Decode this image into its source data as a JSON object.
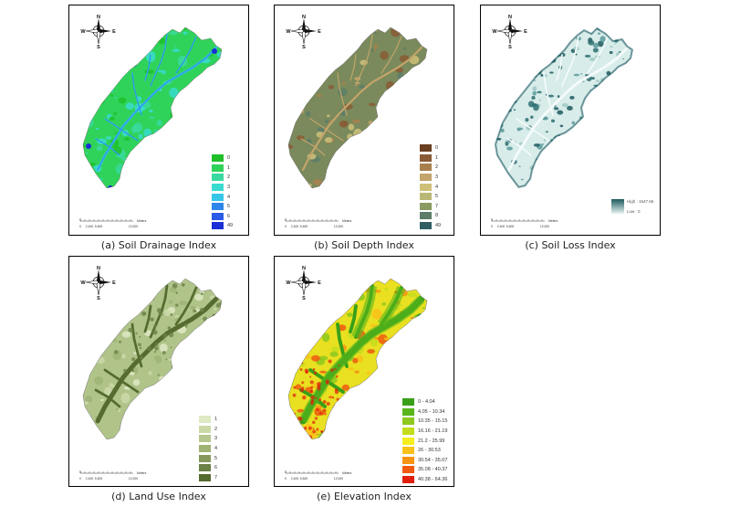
{
  "compass": {
    "n": "N",
    "s": "S",
    "e": "E",
    "w": "W"
  },
  "scalebar": {
    "ticks": [
      "0",
      "2,400",
      "5,600",
      "12,000"
    ],
    "unit": "Meters"
  },
  "panels": [
    {
      "caption": "(a) Soil Drainage Index",
      "map_style": "drainage",
      "legend": [
        {
          "label": "0",
          "color": "#1fbf2a"
        },
        {
          "label": "1",
          "color": "#2fd35a"
        },
        {
          "label": "2",
          "color": "#39d9a0"
        },
        {
          "label": "3",
          "color": "#3adbcf"
        },
        {
          "label": "4",
          "color": "#35c6e8"
        },
        {
          "label": "5",
          "color": "#2f86ea"
        },
        {
          "label": "6",
          "color": "#2a5be6"
        },
        {
          "label": "49",
          "color": "#1a2fd6"
        }
      ]
    },
    {
      "caption": "(b) Soil Depth Index",
      "map_style": "depth",
      "legend": [
        {
          "label": "0",
          "color": "#6b3f22"
        },
        {
          "label": "1",
          "color": "#8a5a34"
        },
        {
          "label": "2",
          "color": "#a8804e"
        },
        {
          "label": "3",
          "color": "#c3a46a"
        },
        {
          "label": "4",
          "color": "#cfc079"
        },
        {
          "label": "5",
          "color": "#b9b774"
        },
        {
          "label": "7",
          "color": "#8a9a60"
        },
        {
          "label": "8",
          "color": "#5c7d68"
        },
        {
          "label": "49",
          "color": "#2f5e63"
        }
      ]
    },
    {
      "caption": "(c) Soil Loss Index",
      "map_style": "loss",
      "gradient": {
        "high": "High : 1547.66",
        "low": "Low : 0"
      }
    },
    {
      "caption": "(d) Land Use Index",
      "map_style": "landuse",
      "legend": [
        {
          "label": "1",
          "color": "#dfe9c4"
        },
        {
          "label": "2",
          "color": "#cbd9a8"
        },
        {
          "label": "3",
          "color": "#b5c78d"
        },
        {
          "label": "4",
          "color": "#9fb474"
        },
        {
          "label": "5",
          "color": "#86995c"
        },
        {
          "label": "6",
          "color": "#6c8146"
        },
        {
          "label": "7",
          "color": "#556b2f"
        }
      ]
    },
    {
      "caption": "(e) Elevation Index",
      "map_style": "elevation",
      "legend": [
        {
          "label": "0 - 4.04",
          "color": "#38a018"
        },
        {
          "label": "4.05 - 10.34",
          "color": "#58b61c"
        },
        {
          "label": "10.35 - 15.15",
          "color": "#8cc81e"
        },
        {
          "label": "16.16 - 21.19",
          "color": "#c4dc1e"
        },
        {
          "label": "21.2 - 25.99",
          "color": "#f4ee20"
        },
        {
          "label": "26 - 30.53",
          "color": "#f8c21a"
        },
        {
          "label": "30.54 - 35.07",
          "color": "#f69414"
        },
        {
          "label": "35.08 - 40.37",
          "color": "#ef5a10"
        },
        {
          "label": "40.38 - 64.36",
          "color": "#e0200c"
        }
      ]
    }
  ]
}
